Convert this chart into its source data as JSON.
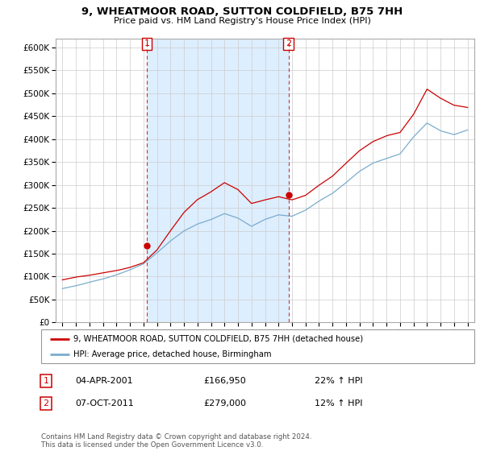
{
  "title": "9, WHEATMOOR ROAD, SUTTON COLDFIELD, B75 7HH",
  "subtitle": "Price paid vs. HM Land Registry's House Price Index (HPI)",
  "legend_label_red": "9, WHEATMOOR ROAD, SUTTON COLDFIELD, B75 7HH (detached house)",
  "legend_label_blue": "HPI: Average price, detached house, Birmingham",
  "annotation1_date": "04-APR-2001",
  "annotation1_price": "£166,950",
  "annotation1_hpi": "22% ↑ HPI",
  "annotation2_date": "07-OCT-2011",
  "annotation2_price": "£279,000",
  "annotation2_hpi": "12% ↑ HPI",
  "footnote": "Contains HM Land Registry data © Crown copyright and database right 2024.\nThis data is licensed under the Open Government Licence v3.0.",
  "red_color": "#cc0000",
  "blue_color": "#7aaccc",
  "shade_color": "#ddeeff",
  "background_color": "#ffffff",
  "grid_color": "#cccccc",
  "ylim": [
    0,
    620000
  ],
  "yticks": [
    0,
    50000,
    100000,
    150000,
    200000,
    250000,
    300000,
    350000,
    400000,
    450000,
    500000,
    550000,
    600000
  ],
  "purchase1_year": 2001.25,
  "purchase1_value": 166950,
  "purchase2_year": 2011.75,
  "purchase2_value": 279000
}
